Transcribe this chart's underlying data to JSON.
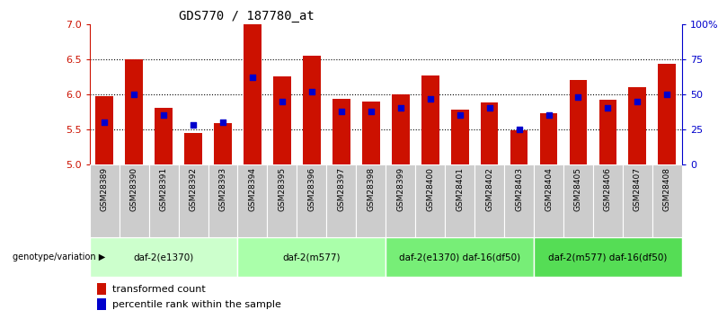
{
  "title": "GDS770 / 187780_at",
  "samples": [
    "GSM28389",
    "GSM28390",
    "GSM28391",
    "GSM28392",
    "GSM28393",
    "GSM28394",
    "GSM28395",
    "GSM28396",
    "GSM28397",
    "GSM28398",
    "GSM28399",
    "GSM28400",
    "GSM28401",
    "GSM28402",
    "GSM28403",
    "GSM28404",
    "GSM28405",
    "GSM28406",
    "GSM28407",
    "GSM28408"
  ],
  "transformed_count": [
    5.97,
    6.5,
    5.8,
    5.45,
    5.58,
    7.0,
    6.25,
    6.55,
    5.93,
    5.9,
    6.0,
    6.27,
    5.78,
    5.88,
    5.48,
    5.73,
    6.2,
    5.92,
    6.1,
    6.43
  ],
  "percentile_rank": [
    30,
    50,
    35,
    28,
    30,
    62,
    45,
    52,
    38,
    38,
    40,
    47,
    35,
    40,
    25,
    35,
    48,
    40,
    45,
    50
  ],
  "ylim": [
    5.0,
    7.0
  ],
  "yticks_left": [
    5.0,
    5.5,
    6.0,
    6.5,
    7.0
  ],
  "yticks_right": [
    0,
    25,
    50,
    75,
    100
  ],
  "ytick_labels_right": [
    "0",
    "25",
    "50",
    "75",
    "100%"
  ],
  "bar_color": "#cc1100",
  "dot_color": "#0000cc",
  "groups": [
    {
      "label": "daf-2(e1370)",
      "start": 0,
      "end": 5,
      "color": "#ccffcc"
    },
    {
      "label": "daf-2(m577)",
      "start": 5,
      "end": 10,
      "color": "#aaffaa"
    },
    {
      "label": "daf-2(e1370) daf-16(df50)",
      "start": 10,
      "end": 15,
      "color": "#77ee77"
    },
    {
      "label": "daf-2(m577) daf-16(df50)",
      "start": 15,
      "end": 20,
      "color": "#55dd55"
    }
  ],
  "genotype_label": "genotype/variation",
  "legend_tc": "transformed count",
  "legend_pr": "percentile rank within the sample",
  "gsm_bg": "#cccccc"
}
